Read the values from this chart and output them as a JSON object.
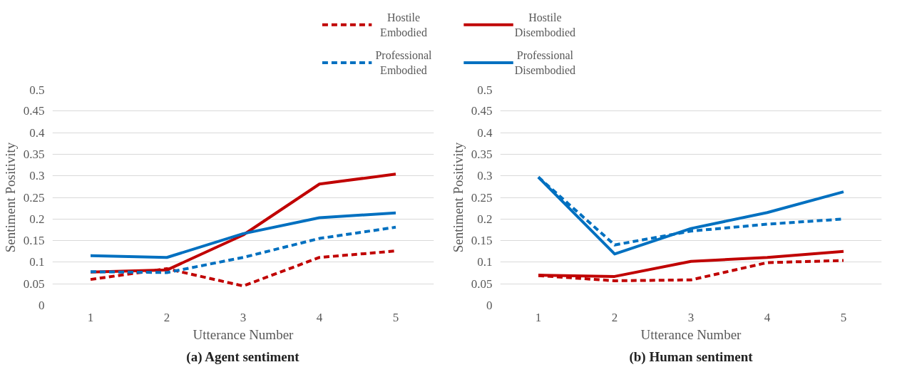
{
  "chart_data": [
    {
      "type": "line",
      "title": "(a) Agent sentiment",
      "xlabel": "Utterance Number",
      "ylabel": "Sentiment Positivity",
      "categories": [
        "1",
        "2",
        "3",
        "4",
        "5"
      ],
      "ylim": [
        0,
        0.5
      ],
      "yticks": [
        0,
        0.05,
        0.1,
        0.15,
        0.2,
        0.25,
        0.3,
        0.35,
        0.4,
        0.45,
        0.5
      ],
      "grid": "y",
      "legend": "top",
      "marker": "none",
      "series": [
        {
          "name": "Hostile Embodied",
          "color": "#c00000",
          "line_style": "dashed",
          "values": [
            0.06,
            0.085,
            0.045,
            0.111,
            0.126
          ]
        },
        {
          "name": "Hostile Disembodied",
          "color": "#c00000",
          "line_style": "solid",
          "values": [
            0.077,
            0.082,
            0.163,
            0.281,
            0.304
          ]
        },
        {
          "name": "Professional Embodied",
          "color": "#0070c0",
          "line_style": "dashed",
          "values": [
            0.078,
            0.076,
            0.111,
            0.155,
            0.181
          ]
        },
        {
          "name": "Professional Disembodied",
          "color": "#0070c0",
          "line_style": "solid",
          "values": [
            0.115,
            0.111,
            0.166,
            0.203,
            0.214
          ]
        }
      ]
    },
    {
      "type": "line",
      "title": "(b) Human sentiment",
      "xlabel": "Utterance Number",
      "ylabel": "Sentiment Positivity",
      "categories": [
        "1",
        "2",
        "3",
        "4",
        "5"
      ],
      "ylim": [
        0,
        0.5
      ],
      "yticks": [
        0,
        0.05,
        0.1,
        0.15,
        0.2,
        0.25,
        0.3,
        0.35,
        0.4,
        0.45,
        0.5
      ],
      "grid": "y",
      "marker": "none",
      "series": [
        {
          "color": "#c00000",
          "line_style": "dashed",
          "values": [
            0.069,
            0.057,
            0.059,
            0.099,
            0.104
          ]
        },
        {
          "color": "#c00000",
          "line_style": "solid",
          "values": [
            0.07,
            0.067,
            0.102,
            0.111,
            0.125
          ]
        },
        {
          "color": "#0070c0",
          "line_style": "dashed",
          "values": [
            0.297,
            0.14,
            0.172,
            0.188,
            0.2
          ]
        },
        {
          "color": "#0070c0",
          "line_style": "solid",
          "values": [
            0.297,
            0.119,
            0.178,
            0.215,
            0.263
          ]
        }
      ]
    }
  ]
}
